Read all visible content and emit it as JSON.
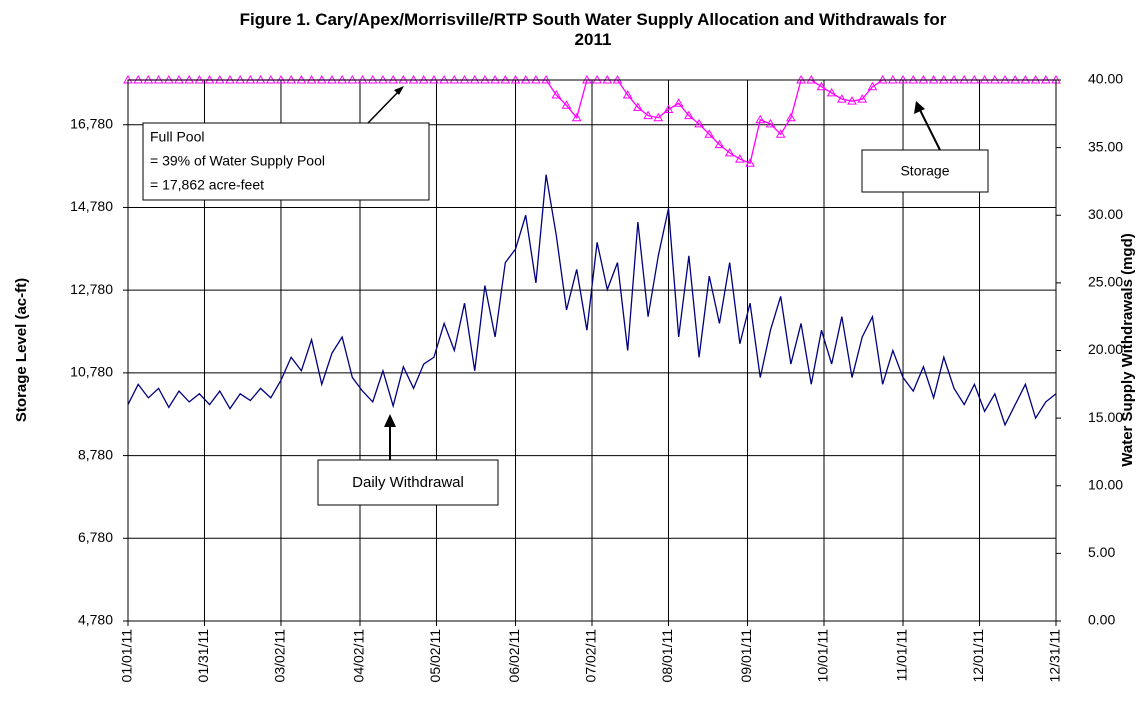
{
  "chart_data": {
    "type": "line",
    "title": "Figure 1.  Cary/Apex/Morrisville/RTP South Water Supply Allocation and Withdrawals for 2011",
    "y_label": "Storage Level (ac-ft)",
    "y2_label": "Water Supply Withdrawals (mgd)",
    "full_pool_note": [
      "Full Pool",
      "= 39% of  Water Supply Pool",
      "= 17,862 acre-feet"
    ],
    "storage_note": "Storage",
    "withdrawal_note": "Daily Withdrawal",
    "x": [
      "01/01/11",
      "01/05/11",
      "01/09/11",
      "01/13/11",
      "01/17/11",
      "01/21/11",
      "01/25/11",
      "01/29/11",
      "02/02/11",
      "02/06/11",
      "02/10/11",
      "02/14/11",
      "02/18/11",
      "02/22/11",
      "02/26/11",
      "03/02/11",
      "03/06/11",
      "03/10/11",
      "03/14/11",
      "03/18/11",
      "03/22/11",
      "03/26/11",
      "03/30/11",
      "04/03/11",
      "04/07/11",
      "04/11/11",
      "04/15/11",
      "04/19/11",
      "04/23/11",
      "04/27/11",
      "05/01/11",
      "05/05/11",
      "05/09/11",
      "05/13/11",
      "05/17/11",
      "05/21/11",
      "05/25/11",
      "05/29/11",
      "06/02/11",
      "06/06/11",
      "06/10/11",
      "06/14/11",
      "06/18/11",
      "06/22/11",
      "06/26/11",
      "06/30/11",
      "07/04/11",
      "07/08/11",
      "07/12/11",
      "07/16/11",
      "07/20/11",
      "07/24/11",
      "07/28/11",
      "08/01/11",
      "08/05/11",
      "08/09/11",
      "08/13/11",
      "08/17/11",
      "08/21/11",
      "08/25/11",
      "08/29/11",
      "09/02/11",
      "09/06/11",
      "09/10/11",
      "09/14/11",
      "09/18/11",
      "09/22/11",
      "09/26/11",
      "09/30/11",
      "10/04/11",
      "10/08/11",
      "10/12/11",
      "10/16/11",
      "10/20/11",
      "10/24/11",
      "10/28/11",
      "11/01/11",
      "11/05/11",
      "11/09/11",
      "11/13/11",
      "11/17/11",
      "11/21/11",
      "11/25/11",
      "11/29/11",
      "12/03/11",
      "12/07/11",
      "12/11/11",
      "12/15/11",
      "12/19/11",
      "12/23/11",
      "12/27/11",
      "12/31/11"
    ],
    "series": [
      {
        "name": "Daily Withdrawal",
        "color": "#000080",
        "axis": "y2",
        "marker": "none",
        "values": [
          16.0,
          17.5,
          16.5,
          17.2,
          15.8,
          17.0,
          16.2,
          16.8,
          16.0,
          17.0,
          15.7,
          16.8,
          16.3,
          17.2,
          16.5,
          17.8,
          19.5,
          18.5,
          20.8,
          17.5,
          19.8,
          21.0,
          18.0,
          17.0,
          16.2,
          18.5,
          15.9,
          18.8,
          17.2,
          19.0,
          19.5,
          22.0,
          20.0,
          23.5,
          18.5,
          24.8,
          21.0,
          26.5,
          27.5,
          30.0,
          25.0,
          33.0,
          28.5,
          23.0,
          26.0,
          21.5,
          28.0,
          24.5,
          26.5,
          20.0,
          29.5,
          22.5,
          27.0,
          30.5,
          21.0,
          27.0,
          19.5,
          25.5,
          22.0,
          26.5,
          20.5,
          23.5,
          18.0,
          21.5,
          24.0,
          19.0,
          22.0,
          17.5,
          21.5,
          19.0,
          22.5,
          18.0,
          21.0,
          22.5,
          17.5,
          20.0,
          18.0,
          17.0,
          18.8,
          16.5,
          19.5,
          17.2,
          16.0,
          17.5,
          15.5,
          16.8,
          14.5,
          16.0,
          17.5,
          15.0,
          16.2,
          16.8
        ]
      },
      {
        "name": "Storage",
        "color": "#ff00ff",
        "axis": "y",
        "marker": "triangle",
        "values": [
          17862,
          17862,
          17862,
          17862,
          17862,
          17862,
          17862,
          17862,
          17862,
          17862,
          17862,
          17862,
          17862,
          17862,
          17862,
          17862,
          17862,
          17862,
          17862,
          17862,
          17862,
          17862,
          17862,
          17862,
          17862,
          17862,
          17862,
          17862,
          17862,
          17862,
          17862,
          17862,
          17862,
          17862,
          17862,
          17862,
          17862,
          17862,
          17862,
          17862,
          17862,
          17862,
          17500,
          17250,
          16950,
          17862,
          17862,
          17862,
          17862,
          17500,
          17200,
          17000,
          16950,
          17150,
          17300,
          17000,
          16800,
          16550,
          16300,
          16100,
          15950,
          15850,
          16900,
          16800,
          16550,
          16950,
          17862,
          17862,
          17700,
          17550,
          17400,
          17350,
          17400,
          17700,
          17862,
          17862,
          17862,
          17862,
          17862,
          17862,
          17862,
          17862,
          17862,
          17862,
          17862,
          17862,
          17862,
          17862,
          17862,
          17862,
          17862,
          17862
        ]
      }
    ],
    "xlim": [
      "01/01/11",
      "12/31/11"
    ],
    "xticks": [
      "01/01/11",
      "01/31/11",
      "03/02/11",
      "04/02/11",
      "05/02/11",
      "06/02/11",
      "07/02/11",
      "08/01/11",
      "09/01/11",
      "10/01/11",
      "11/01/11",
      "12/01/11",
      "12/31/11"
    ],
    "ylim": [
      4780,
      17862
    ],
    "yticks": [
      {
        "value": 4780,
        "label": "4,780"
      },
      {
        "value": 6780,
        "label": "6,780"
      },
      {
        "value": 8780,
        "label": "8,780"
      },
      {
        "value": 10780,
        "label": "10,780"
      },
      {
        "value": 12780,
        "label": "12,780"
      },
      {
        "value": 14780,
        "label": "14,780"
      },
      {
        "value": 16780,
        "label": "16,780"
      }
    ],
    "y2lim": [
      0,
      40
    ],
    "y2ticks": [
      {
        "value": 0,
        "label": "0.00"
      },
      {
        "value": 5,
        "label": "5.00"
      },
      {
        "value": 10,
        "label": "10.00"
      },
      {
        "value": 15,
        "label": "15.00"
      },
      {
        "value": 20,
        "label": "20.00"
      },
      {
        "value": 25,
        "label": "25.00"
      },
      {
        "value": 30,
        "label": "30.00"
      },
      {
        "value": 35,
        "label": "35.00"
      },
      {
        "value": 40,
        "label": "40.00"
      }
    ],
    "grid": true
  }
}
